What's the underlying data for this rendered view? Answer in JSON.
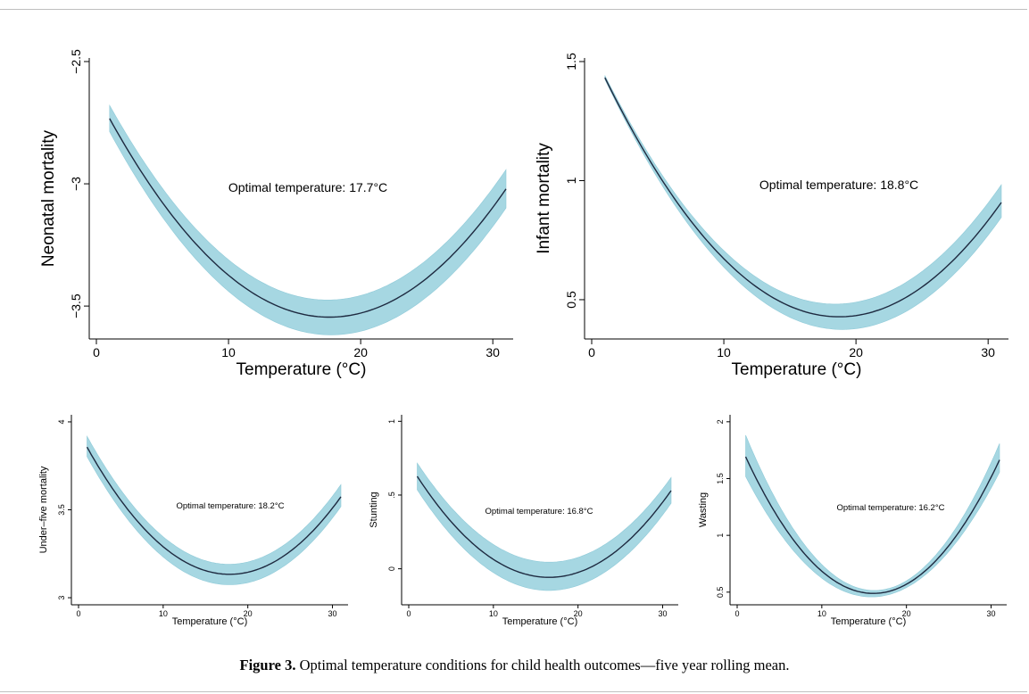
{
  "caption": {
    "label": "Figure 3.",
    "text": "Optimal temperature conditions for child health outcomes—five year rolling mean."
  },
  "colors": {
    "band": "#a6d7e2",
    "curve": "#1e2a40"
  },
  "chart_data": [
    {
      "type": "line",
      "ylabel": "Neonatal mortality",
      "xlabel": "Temperature (°C)",
      "annotation": "Optimal temperature: 17.7°C",
      "xlim": [
        0,
        31
      ],
      "ylim": [
        -3.62,
        -2.5
      ],
      "xticks": [
        "0",
        "10",
        "20",
        "30"
      ],
      "yticks": [
        "−3.5",
        "−3",
        "−2.5"
      ],
      "x": [
        1,
        5,
        10,
        15,
        17.7,
        20,
        25,
        31
      ],
      "y": [
        -2.73,
        -3.08,
        -3.38,
        -3.52,
        -3.54,
        -3.53,
        -3.39,
        -3.02
      ],
      "lower": [
        -2.79,
        -3.13,
        -3.44,
        -3.6,
        -3.62,
        -3.6,
        -3.46,
        -3.1
      ],
      "upper": [
        -2.67,
        -3.03,
        -3.32,
        -3.45,
        -3.46,
        -3.46,
        -3.32,
        -2.94
      ]
    },
    {
      "type": "line",
      "ylabel": "Infant mortality",
      "xlabel": "Temperature (°C)",
      "annotation": "Optimal temperature: 18.8°C",
      "xlim": [
        0,
        31
      ],
      "ylim": [
        0.35,
        1.5
      ],
      "xticks": [
        "0",
        "10",
        "20",
        "30"
      ],
      "yticks": [
        "0.5",
        "1",
        "1.5"
      ],
      "x": [
        1,
        5,
        10,
        15,
        18.8,
        20,
        25,
        31
      ],
      "y": [
        1.45,
        1.0,
        0.68,
        0.48,
        0.42,
        0.43,
        0.57,
        0.9
      ],
      "lower": [
        1.44,
        0.98,
        0.65,
        0.44,
        0.36,
        0.37,
        0.51,
        0.84
      ],
      "upper": [
        1.46,
        1.02,
        0.71,
        0.53,
        0.48,
        0.49,
        0.62,
        0.98
      ]
    },
    {
      "type": "line",
      "ylabel": "Under–five mortality",
      "xlabel": "Temperature (°C)",
      "annotation": "Optimal temperature: 18.2°C",
      "xlim": [
        0,
        31
      ],
      "ylim": [
        2.98,
        4.02
      ],
      "xticks": [
        "0",
        "10",
        "20",
        "30"
      ],
      "yticks": [
        "3",
        "3.5",
        "4"
      ],
      "x": [
        1,
        5,
        10,
        15,
        18.2,
        20,
        25,
        31
      ],
      "y": [
        3.88,
        3.53,
        3.27,
        3.16,
        3.14,
        3.15,
        3.28,
        3.56
      ],
      "lower": [
        3.83,
        3.47,
        3.21,
        3.1,
        3.08,
        3.09,
        3.23,
        3.5
      ],
      "upper": [
        3.94,
        3.59,
        3.33,
        3.21,
        3.2,
        3.21,
        3.34,
        3.63
      ]
    },
    {
      "type": "line",
      "ylabel": "Stunting",
      "xlabel": "Temperature (°C)",
      "annotation": "Optimal temperature: 16.8°C",
      "xlim": [
        0,
        31
      ],
      "ylim": [
        -0.22,
        1.02
      ],
      "xticks": [
        "0",
        "10",
        "20",
        "30"
      ],
      "yticks": [
        "0",
        ".5",
        "1"
      ],
      "x": [
        1,
        5,
        10,
        15,
        16.8,
        20,
        25,
        31
      ],
      "y": [
        0.64,
        0.3,
        0.06,
        -0.04,
        -0.05,
        -0.03,
        0.14,
        0.53
      ],
      "lower": [
        0.55,
        0.21,
        -0.03,
        -0.13,
        -0.15,
        -0.11,
        0.06,
        0.44
      ],
      "upper": [
        0.73,
        0.4,
        0.15,
        0.06,
        0.06,
        0.08,
        0.23,
        0.62
      ]
    },
    {
      "type": "line",
      "ylabel": "Wasting",
      "xlabel": "Temperature (°C)",
      "annotation": "Optimal temperature: 16.2°C",
      "xlim": [
        0,
        31
      ],
      "ylim": [
        0.42,
        2.03
      ],
      "xticks": [
        "0",
        "10",
        "20",
        "30"
      ],
      "yticks": [
        "0.5",
        "1",
        "1.5",
        "2"
      ],
      "x": [
        1,
        5,
        10,
        15,
        16.2,
        20,
        25,
        31
      ],
      "y": [
        1.72,
        1.11,
        0.66,
        0.5,
        0.5,
        0.56,
        0.95,
        1.64
      ],
      "lower": [
        1.55,
        1.0,
        0.59,
        0.46,
        0.46,
        0.54,
        0.92,
        1.52
      ],
      "upper": [
        1.9,
        1.23,
        0.74,
        0.53,
        0.53,
        0.58,
        0.99,
        1.8
      ]
    }
  ]
}
